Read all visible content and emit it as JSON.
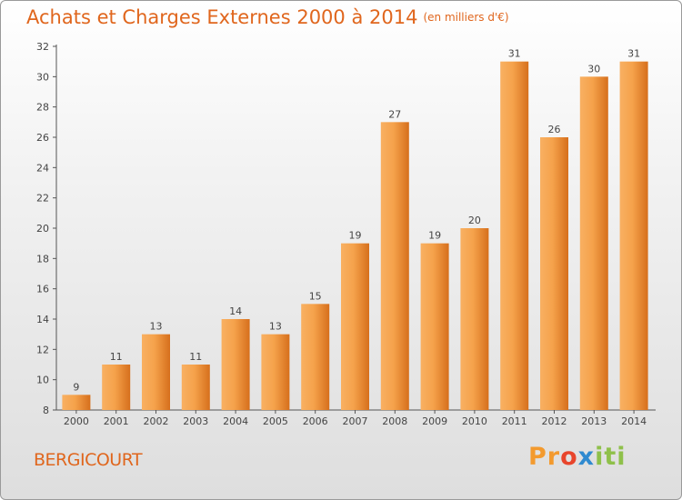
{
  "title": "Achats et Charges Externes 2000 à 2014",
  "subtitle": "(en milliers d'€)",
  "commune": "BERGICOURT",
  "logo": [
    "Pr",
    "o",
    "x",
    "iti"
  ],
  "colors": {
    "accent": "#e0661d",
    "bar_light": "#f6a650",
    "bar_dark": "#d9741f"
  },
  "chart_data": {
    "type": "bar",
    "title": "Achats et Charges Externes 2000 à 2014",
    "subtitle": "(en milliers d'€)",
    "categories": [
      "2000",
      "2001",
      "2002",
      "2003",
      "2004",
      "2005",
      "2006",
      "2007",
      "2008",
      "2009",
      "2010",
      "2011",
      "2012",
      "2013",
      "2014"
    ],
    "values": [
      9,
      11,
      13,
      11,
      14,
      13,
      15,
      19,
      27,
      19,
      20,
      31,
      26,
      30,
      31
    ],
    "ylim": [
      8,
      32
    ],
    "yticks": [
      8,
      10,
      12,
      14,
      16,
      18,
      20,
      22,
      24,
      26,
      28,
      30,
      32
    ],
    "grid": false,
    "data_labels": true
  }
}
